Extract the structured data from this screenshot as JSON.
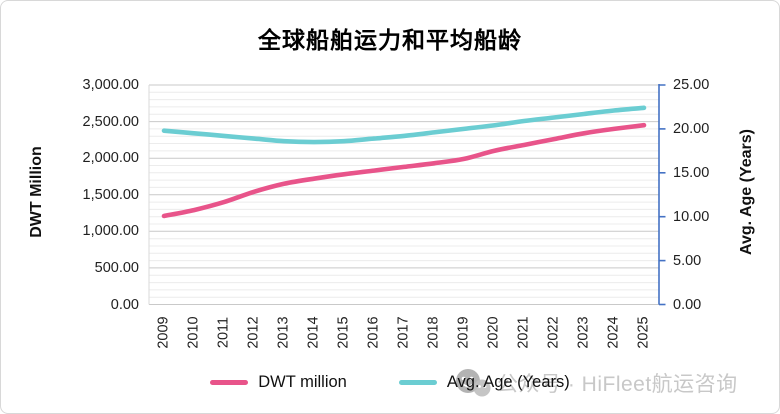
{
  "window": {
    "background": "#ffffff",
    "border_color": "#d8d8d8"
  },
  "chart_data": {
    "type": "line",
    "title": "全球船舶运力和平均船龄",
    "smooth": true,
    "grid": {
      "major_color": "#c9c9c9",
      "minor_color": "#ececec",
      "left_border_color": "#dadada"
    },
    "categories": [
      "2009",
      "2010",
      "2011",
      "2012",
      "2013",
      "2014",
      "2015",
      "2016",
      "2017",
      "2018",
      "2019",
      "2020",
      "2021",
      "2022",
      "2023",
      "2024",
      "2025"
    ],
    "series": [
      {
        "name": "DWT million",
        "axis": "left",
        "color": "#e8548a",
        "values": [
          1210,
          1290,
          1400,
          1540,
          1650,
          1720,
          1780,
          1830,
          1880,
          1930,
          1990,
          2100,
          2180,
          2260,
          2340,
          2400,
          2450
        ]
      },
      {
        "name": "Avg. Age (Years)",
        "axis": "right",
        "color": "#6bcdd2",
        "values": [
          19.8,
          19.5,
          19.2,
          18.9,
          18.6,
          18.5,
          18.6,
          18.9,
          19.2,
          19.6,
          20.0,
          20.4,
          20.9,
          21.3,
          21.7,
          22.1,
          22.4
        ]
      }
    ],
    "left_axis": {
      "title": "DWT Million",
      "min": 0,
      "max": 3000,
      "major_step": 500,
      "minor_step": 100,
      "tick_labels": [
        "3,000.00",
        "2,500.00",
        "2,000.00",
        "1,500.00",
        "1,000.00",
        "500.00",
        "0.00"
      ]
    },
    "right_axis": {
      "title": "Avg. Age (Years)",
      "min": 0,
      "max": 25,
      "major_step": 5,
      "line_color": "#4472c4",
      "tick_labels": [
        "25.00",
        "20.00",
        "15.00",
        "10.00",
        "5.00",
        "0.00"
      ]
    },
    "legend": [
      {
        "label": "DWT million",
        "color": "#e8548a"
      },
      {
        "label": "Avg. Age (Years)",
        "color": "#6bcdd2"
      }
    ]
  },
  "watermark": {
    "text": "公众号 · HiFleet航运咨询",
    "color": "#c8c8c8"
  }
}
